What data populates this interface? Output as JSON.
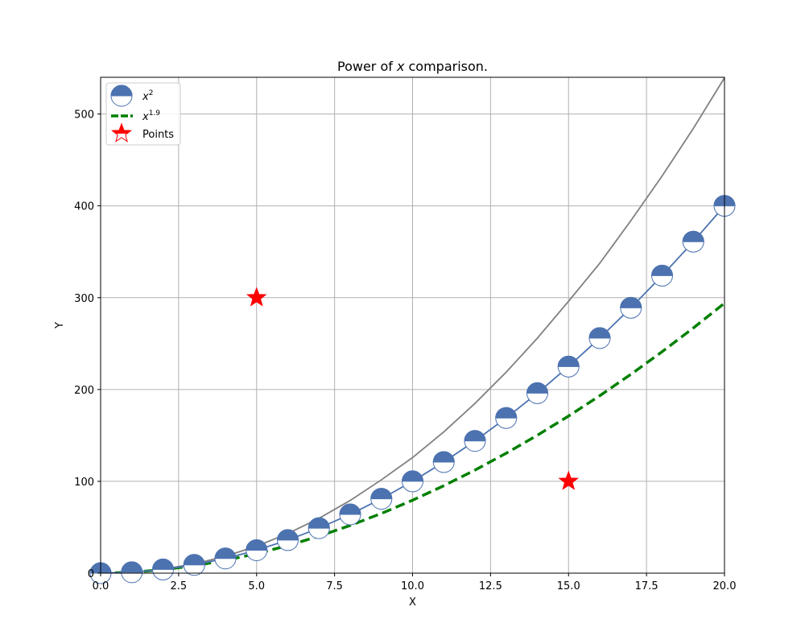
{
  "chart_data": {
    "type": "line",
    "title": {
      "pre": "Power of ",
      "var": "x",
      "post": " comparison."
    },
    "xlabel": "X",
    "ylabel": "Y",
    "xlim": [
      0,
      20
    ],
    "ylim": [
      0,
      540
    ],
    "xticks": [
      0,
      2.5,
      5,
      7.5,
      10,
      12.5,
      15,
      17.5,
      20
    ],
    "xtick_labels": [
      "0.0",
      "2.5",
      "5.0",
      "7.5",
      "10.0",
      "12.5",
      "15.0",
      "17.5",
      "20.0"
    ],
    "yticks": [
      0,
      100,
      200,
      300,
      400,
      500
    ],
    "ytick_labels": [
      "0",
      "100",
      "200",
      "300",
      "400",
      "500"
    ],
    "grid": true,
    "legend_placement": "top-left",
    "series": [
      {
        "id": "x2",
        "name": {
          "base": "x",
          "exp": "2"
        },
        "style": "line-with-half-filled-circle-markers",
        "color": "#4c72b0",
        "x": [
          0,
          1,
          2,
          3,
          4,
          5,
          6,
          7,
          8,
          9,
          10,
          11,
          12,
          13,
          14,
          15,
          16,
          17,
          18,
          19,
          20
        ],
        "y": [
          0,
          1,
          4,
          9,
          16,
          25,
          36,
          49,
          64,
          81,
          100,
          121,
          144,
          169,
          196,
          225,
          256,
          289,
          324,
          361,
          400
        ]
      },
      {
        "id": "x19",
        "name": {
          "base": "x",
          "exp": "1.9"
        },
        "style": "dashed",
        "color": "#008000",
        "x": [
          0,
          1,
          2,
          3,
          4,
          5,
          6,
          7,
          8,
          9,
          10,
          11,
          12,
          13,
          14,
          15,
          16,
          17,
          18,
          19,
          20
        ],
        "y": [
          0,
          1,
          3.73,
          8.06,
          13.93,
          21.28,
          30.06,
          40.23,
          51.98,
          65.02,
          79.43,
          95.18,
          112.22,
          130.57,
          150.19,
          171.07,
          193.2,
          216.57,
          241.17,
          266.98,
          294.0
        ]
      },
      {
        "id": "x21",
        "style": "solid",
        "color": "#808080",
        "x": [
          0,
          1,
          2,
          3,
          4,
          5,
          6,
          7,
          8,
          9,
          10,
          11,
          12,
          13,
          14,
          15,
          16,
          17,
          18,
          19,
          20
        ],
        "y": [
          0,
          1,
          4.29,
          10.05,
          18.38,
          29.37,
          43.11,
          59.69,
          79.17,
          101.63,
          125.89,
          153.84,
          184.8,
          218.79,
          255.87,
          296.08,
          337.41,
          383.99,
          432.5,
          484.26,
          539.43
        ]
      },
      {
        "id": "points",
        "name": "Points",
        "style": "star-markers",
        "color": "#ff0000",
        "x": [
          5,
          15
        ],
        "y": [
          300,
          100
        ]
      }
    ]
  }
}
